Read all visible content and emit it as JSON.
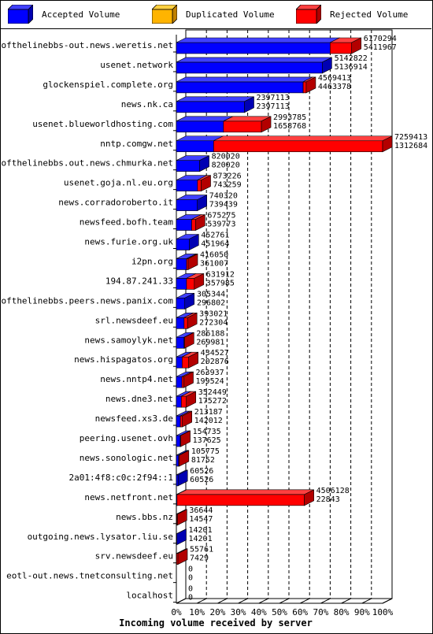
{
  "legend": {
    "accepted": "Accepted Volume",
    "duplicated": "Duplicated Volume",
    "rejected": "Rejected Volume"
  },
  "colors": {
    "accepted": "#0000ff",
    "duplicated": "#ffb400",
    "rejected": "#ff0000"
  },
  "chart_data": {
    "type": "bar",
    "orientation": "horizontal",
    "stacked": true,
    "xlabel": "Incoming volume received by server",
    "xticks": [
      "0%",
      "10%",
      "20%",
      "30%",
      "40%",
      "50%",
      "60%",
      "70%",
      "80%",
      "90%",
      "100%"
    ],
    "xlim": [
      0,
      100
    ],
    "grid": true,
    "legend_position": "top",
    "series": [
      {
        "name": "Accepted Volume",
        "color": "#0000ff"
      },
      {
        "name": "Duplicated Volume",
        "color": "#ffb400"
      },
      {
        "name": "Rejected Volume",
        "color": "#ff0000"
      }
    ],
    "rows": [
      {
        "label": "endofthelinebbs-out.news.weretis.net",
        "total": "6170294",
        "accepted": "5411967"
      },
      {
        "label": "usenet.network",
        "total": "5142822",
        "accepted": "5136914"
      },
      {
        "label": "glockenspiel.complete.org",
        "total": "4569413",
        "accepted": "4463378"
      },
      {
        "label": "news.nk.ca",
        "total": "2397113",
        "accepted": "2397113"
      },
      {
        "label": "usenet.blueworldhosting.com",
        "total": "2993785",
        "accepted": "1658768"
      },
      {
        "label": "nntp.comgw.net",
        "total": "7259413",
        "accepted": "1312684"
      },
      {
        "label": "endofthelinebbs.out.news.chmurka.net",
        "total": "820020",
        "accepted": "820020"
      },
      {
        "label": "usenet.goja.nl.eu.org",
        "total": "873226",
        "accepted": "743259"
      },
      {
        "label": "news.corradoroberto.it",
        "total": "740320",
        "accepted": "739439"
      },
      {
        "label": "newsfeed.bofh.team",
        "total": "675275",
        "accepted": "539773"
      },
      {
        "label": "news.furie.org.uk",
        "total": "452761",
        "accepted": "451964"
      },
      {
        "label": "i2pn.org",
        "total": "416050",
        "accepted": "361007"
      },
      {
        "label": "194.87.241.33",
        "total": "631912",
        "accepted": "357985"
      },
      {
        "label": "endofthelinebbs.peers.news.panix.com",
        "total": "305344",
        "accepted": "296802"
      },
      {
        "label": "srl.newsdeef.eu",
        "total": "393021",
        "accepted": "272304"
      },
      {
        "label": "news.samoylyk.net",
        "total": "286188",
        "accepted": "269981"
      },
      {
        "label": "news.hispagatos.org",
        "total": "434527",
        "accepted": "202876"
      },
      {
        "label": "news.nntp4.net",
        "total": "263937",
        "accepted": "199524"
      },
      {
        "label": "news.dne3.net",
        "total": "352449",
        "accepted": "175272"
      },
      {
        "label": "newsfeed.xs3.de",
        "total": "213187",
        "accepted": "142012"
      },
      {
        "label": "peering.usenet.ovh",
        "total": "154735",
        "accepted": "137625"
      },
      {
        "label": "news.sonologic.net",
        "total": "105775",
        "accepted": "81752"
      },
      {
        "label": "2a01:4f8:c0c:2f94::1",
        "total": "60526",
        "accepted": "60526"
      },
      {
        "label": "news.netfront.net",
        "total": "4506128",
        "accepted": "22843"
      },
      {
        "label": "news.bbs.nz",
        "total": "36644",
        "accepted": "14547"
      },
      {
        "label": "outgoing.news.lysator.liu.se",
        "total": "14201",
        "accepted": "14201"
      },
      {
        "label": "srv.newsdeef.eu",
        "total": "55761",
        "accepted": "7429"
      },
      {
        "label": "eotl-out.news.tnetconsulting.net",
        "total": "0",
        "accepted": "0"
      },
      {
        "label": "localhost",
        "total": "0",
        "accepted": "0"
      }
    ]
  }
}
